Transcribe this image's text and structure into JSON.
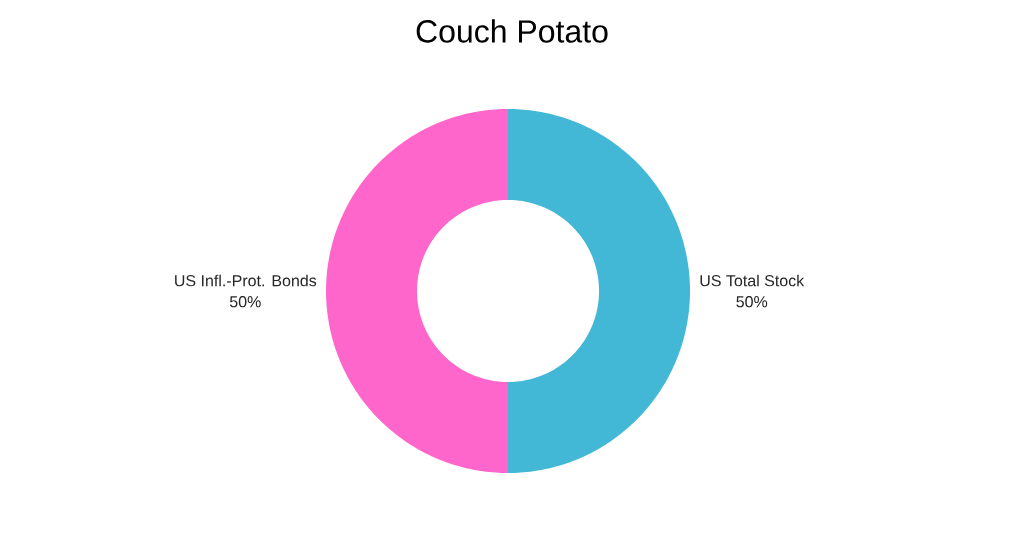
{
  "chart_data": {
    "type": "donut",
    "title": "Couch Potato",
    "categories": [
      "US Total Stock",
      "US Infl.-Prot. Bonds"
    ],
    "values": [
      50,
      50
    ],
    "colors": [
      "#42b8d6",
      "#ff66cc"
    ],
    "value_labels": [
      "50%",
      "50%"
    ]
  }
}
